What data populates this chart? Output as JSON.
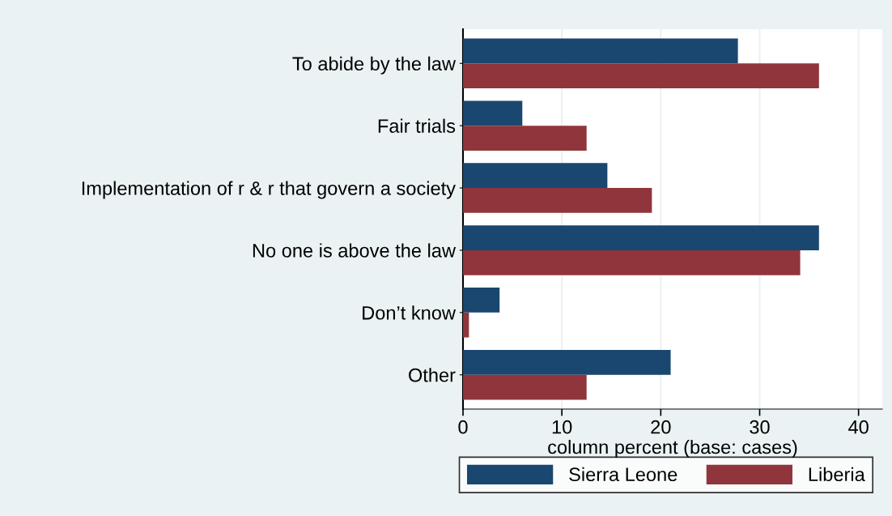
{
  "chart_data": {
    "type": "bar",
    "orientation": "horizontal",
    "xlabel": "column percent (base: cases)",
    "categories": [
      "To abide by the law",
      "Fair trials",
      "Implementation of r & r that govern a society",
      "No one is above the law",
      "Don’t know",
      "Other"
    ],
    "series": [
      {
        "name": "Sierra Leone",
        "color": "#1a476f",
        "values": [
          27.8,
          6.0,
          14.6,
          36.0,
          3.7,
          21.0
        ]
      },
      {
        "name": "Liberia",
        "color": "#90353b",
        "values": [
          36.0,
          12.5,
          19.1,
          34.1,
          0.6,
          12.5
        ]
      }
    ],
    "xlim": [
      0,
      42.4
    ],
    "xticks": [
      0,
      10,
      20,
      30,
      40
    ],
    "grid": "x",
    "legend": "bottom"
  }
}
